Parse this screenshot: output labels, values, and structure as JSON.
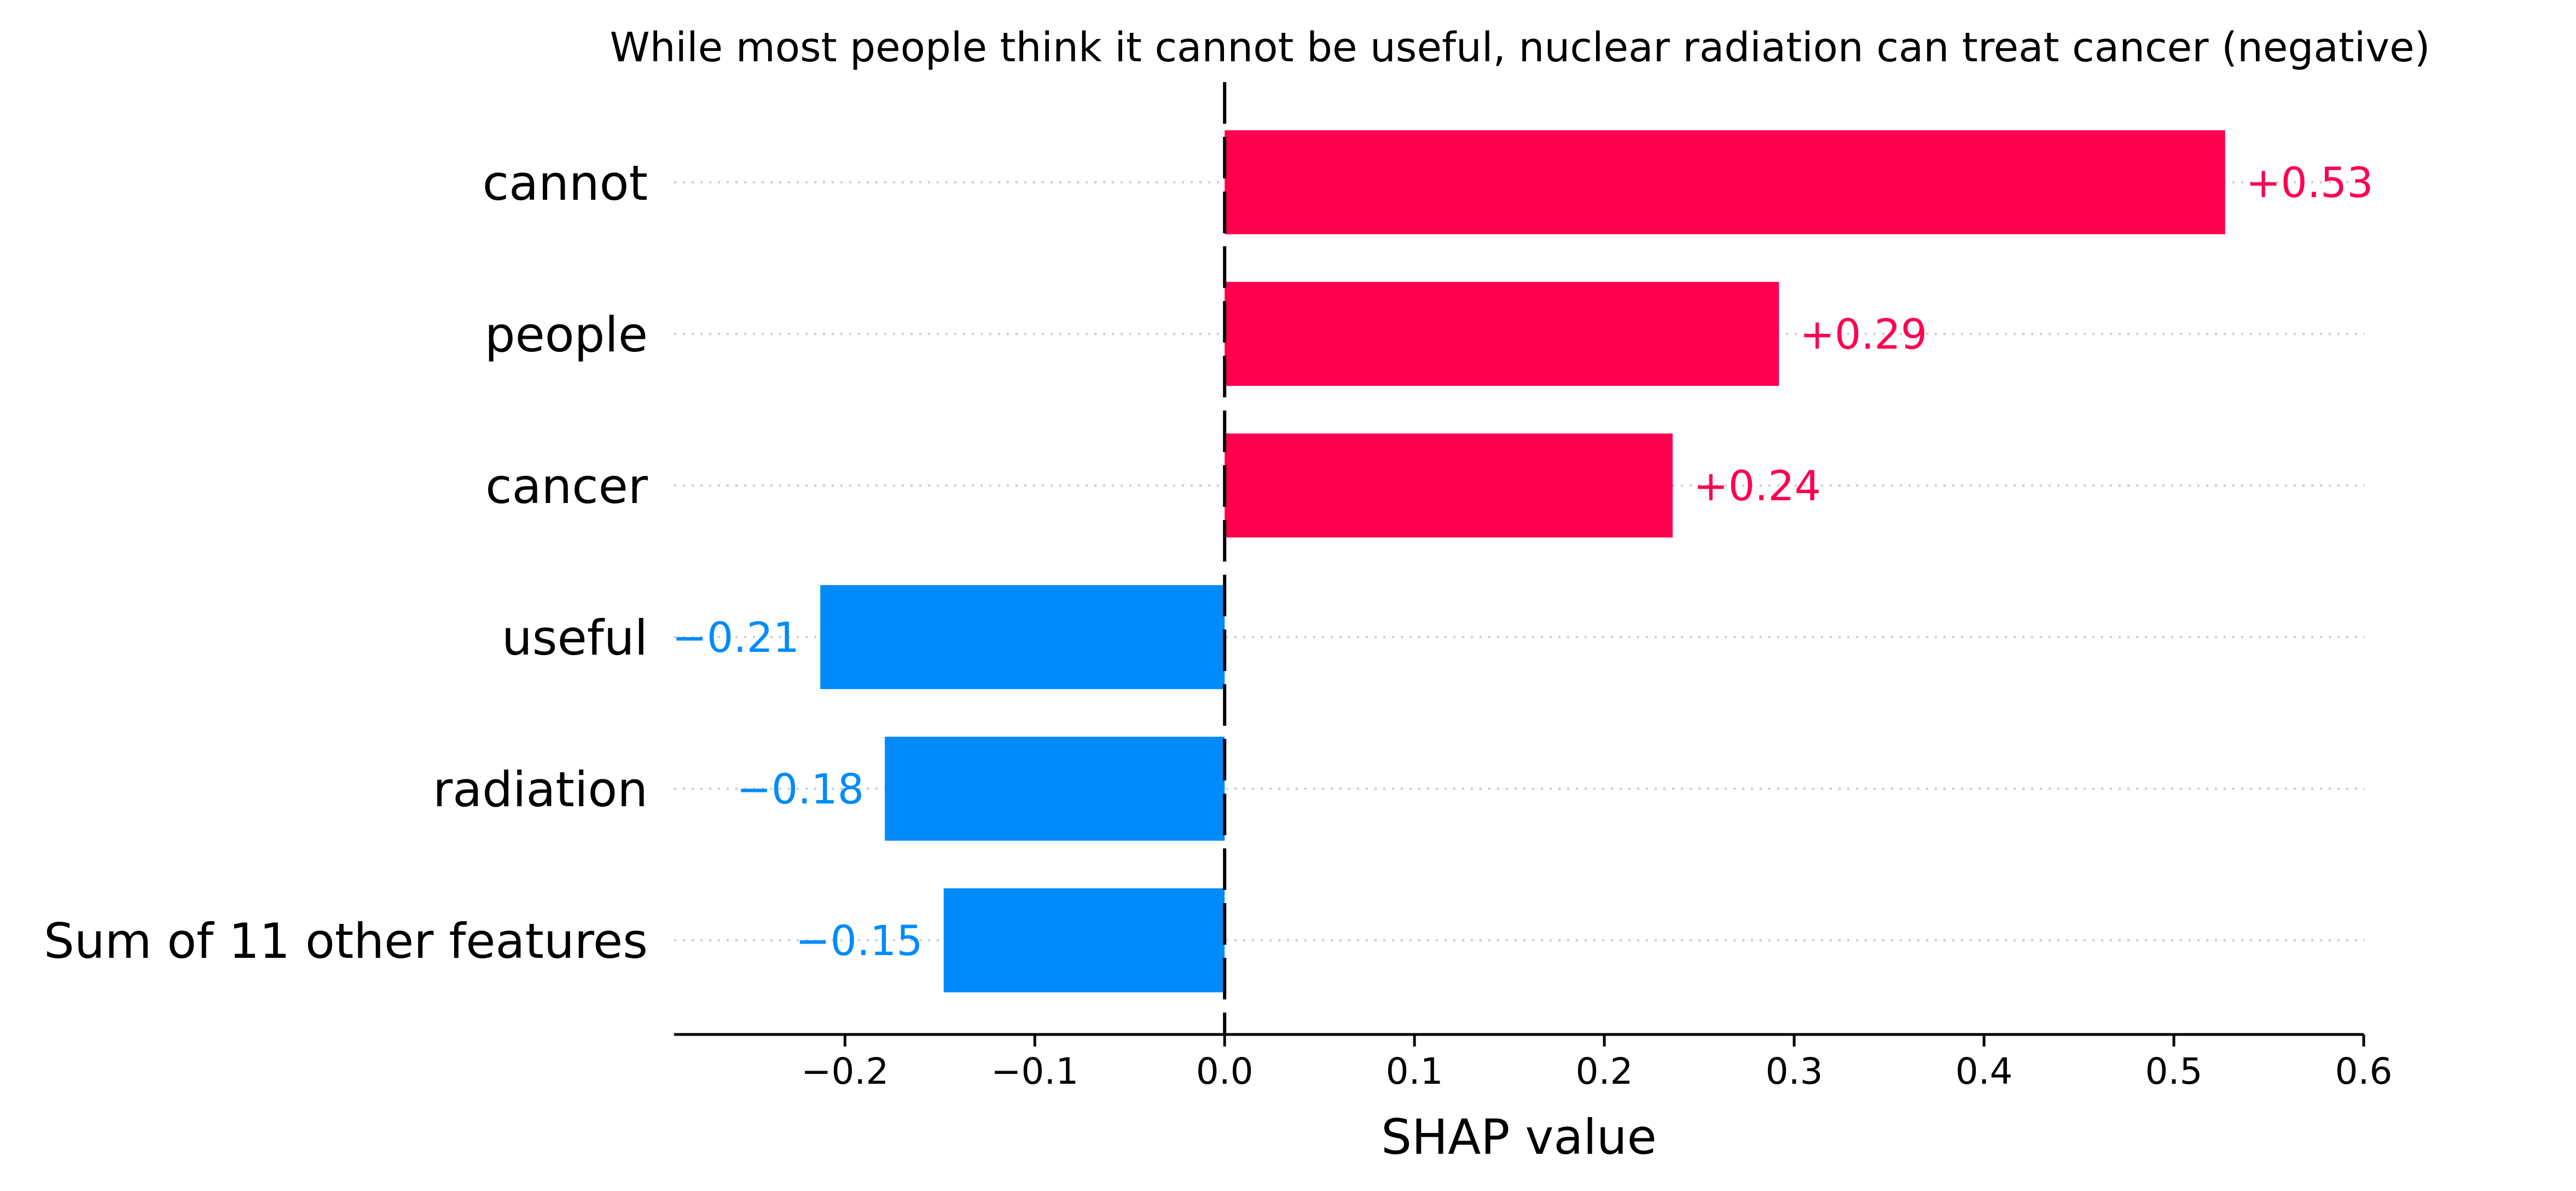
{
  "chart_data": {
    "type": "bar",
    "orientation": "horizontal",
    "title": "While most people think it cannot be useful, nuclear radiation can treat cancer (negative)",
    "xlabel": "SHAP value",
    "ylabel": "",
    "xlim": [
      -0.29,
      0.6
    ],
    "xticks": [
      -0.2,
      -0.1,
      0.0,
      0.1,
      0.2,
      0.3,
      0.4,
      0.5,
      0.6
    ],
    "xtick_labels": [
      "−0.2",
      "−0.1",
      "0.0",
      "0.1",
      "0.2",
      "0.3",
      "0.4",
      "0.5",
      "0.6"
    ],
    "categories": [
      "cannot",
      "people",
      "cancer",
      "useful",
      "radiation",
      "Sum of 11 other features"
    ],
    "values": [
      0.527,
      0.292,
      0.236,
      -0.213,
      -0.179,
      -0.148
    ],
    "value_labels": [
      "+0.53",
      "+0.29",
      "+0.24",
      "−0.21",
      "−0.18",
      "−0.15"
    ],
    "colors": {
      "positive": "#ff0051",
      "negative": "#008bfb",
      "axis": "#000000",
      "gridline": "#cccccc"
    },
    "grid": "dotted row guides",
    "legend": "none"
  }
}
